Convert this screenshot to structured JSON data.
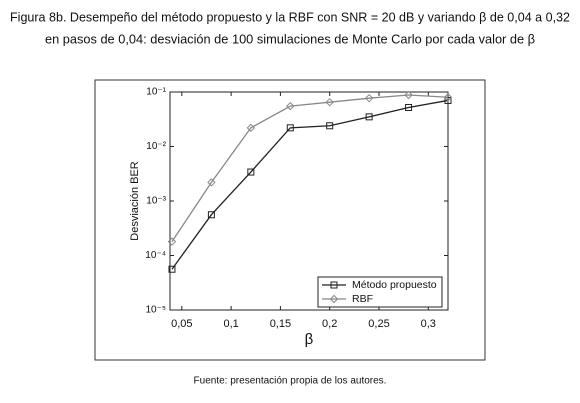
{
  "chart_data": {
    "type": "line",
    "title": [
      "Figura 8b. Desempeño del método propuesto y la RBF con SNR = 20 dB y variando β de 0,04 a 0,32",
      "en pasos de 0,04: desviación de 100 simulaciones de Monte Carlo por cada valor de β"
    ],
    "source": "Fuente: presentación propia de los autores.",
    "xlabel": "β",
    "ylabel": "Desviación BER",
    "x": [
      0.04,
      0.08,
      0.12,
      0.16,
      0.2,
      0.24,
      0.28,
      0.32
    ],
    "series": [
      {
        "name": "Método propuesto",
        "color": "#222222",
        "marker": "square",
        "values": [
          5.6e-05,
          0.00056,
          0.0034,
          0.022,
          0.024,
          0.035,
          0.052,
          0.07
        ]
      },
      {
        "name": "RBF",
        "color": "#888888",
        "marker": "diamond",
        "values": [
          0.00018,
          0.0022,
          0.022,
          0.055,
          0.065,
          0.077,
          0.088,
          0.08
        ]
      }
    ],
    "xlim": [
      0.038,
      0.32
    ],
    "ylim": [
      1e-05,
      0.1
    ],
    "yscale": "log",
    "xticks": [
      {
        "value": 0.05,
        "label": "0,05"
      },
      {
        "value": 0.1,
        "label": "0,1"
      },
      {
        "value": 0.15,
        "label": "0,15"
      },
      {
        "value": 0.2,
        "label": "0,2"
      },
      {
        "value": 0.25,
        "label": "0,25"
      },
      {
        "value": 0.3,
        "label": "0,3"
      }
    ],
    "yticks": [
      {
        "value": 1e-05,
        "label": "10⁻⁵"
      },
      {
        "value": 0.0001,
        "label": "10⁻⁴"
      },
      {
        "value": 0.001,
        "label": "10⁻³"
      },
      {
        "value": 0.01,
        "label": "10⁻²"
      },
      {
        "value": 0.1,
        "label": "10⁻¹"
      }
    ],
    "legend": "lower right",
    "grid": false
  }
}
